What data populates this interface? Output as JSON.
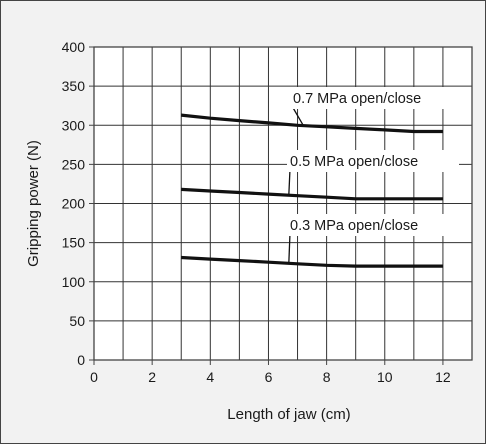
{
  "chart_data": {
    "type": "line",
    "title": "",
    "xlabel": "Length of jaw (cm)",
    "ylabel": "Gripping power (N)",
    "xlim": [
      0,
      13
    ],
    "ylim": [
      0,
      400
    ],
    "xticks": [
      0,
      2,
      4,
      6,
      8,
      10,
      12
    ],
    "yticks": [
      0,
      50,
      100,
      150,
      200,
      250,
      300,
      350,
      400
    ],
    "grid": true,
    "legend": "none",
    "series": [
      {
        "name": "0.7 MPa open/close",
        "color": "#111111",
        "x": [
          3,
          4,
          5,
          6,
          7,
          8,
          9,
          10,
          11,
          12
        ],
        "y": [
          313,
          309,
          306,
          303,
          300,
          298,
          296,
          294,
          292,
          292
        ]
      },
      {
        "name": "0.5 MPa open/close",
        "color": "#111111",
        "x": [
          3,
          4,
          5,
          6,
          7,
          8,
          9,
          10,
          11,
          12
        ],
        "y": [
          218,
          216,
          214,
          212,
          210,
          208,
          206,
          206,
          206,
          206
        ]
      },
      {
        "name": "0.3 MPa open/close",
        "color": "#111111",
        "x": [
          3,
          4,
          5,
          6,
          7,
          8,
          9,
          10,
          11,
          12
        ],
        "y": [
          131,
          129,
          127,
          125,
          123,
          121,
          120,
          120,
          120,
          120
        ]
      }
    ],
    "colors": {
      "background": "#f2f2f2",
      "frame": "#444444",
      "grid": "#333333",
      "line": "#111111"
    }
  }
}
